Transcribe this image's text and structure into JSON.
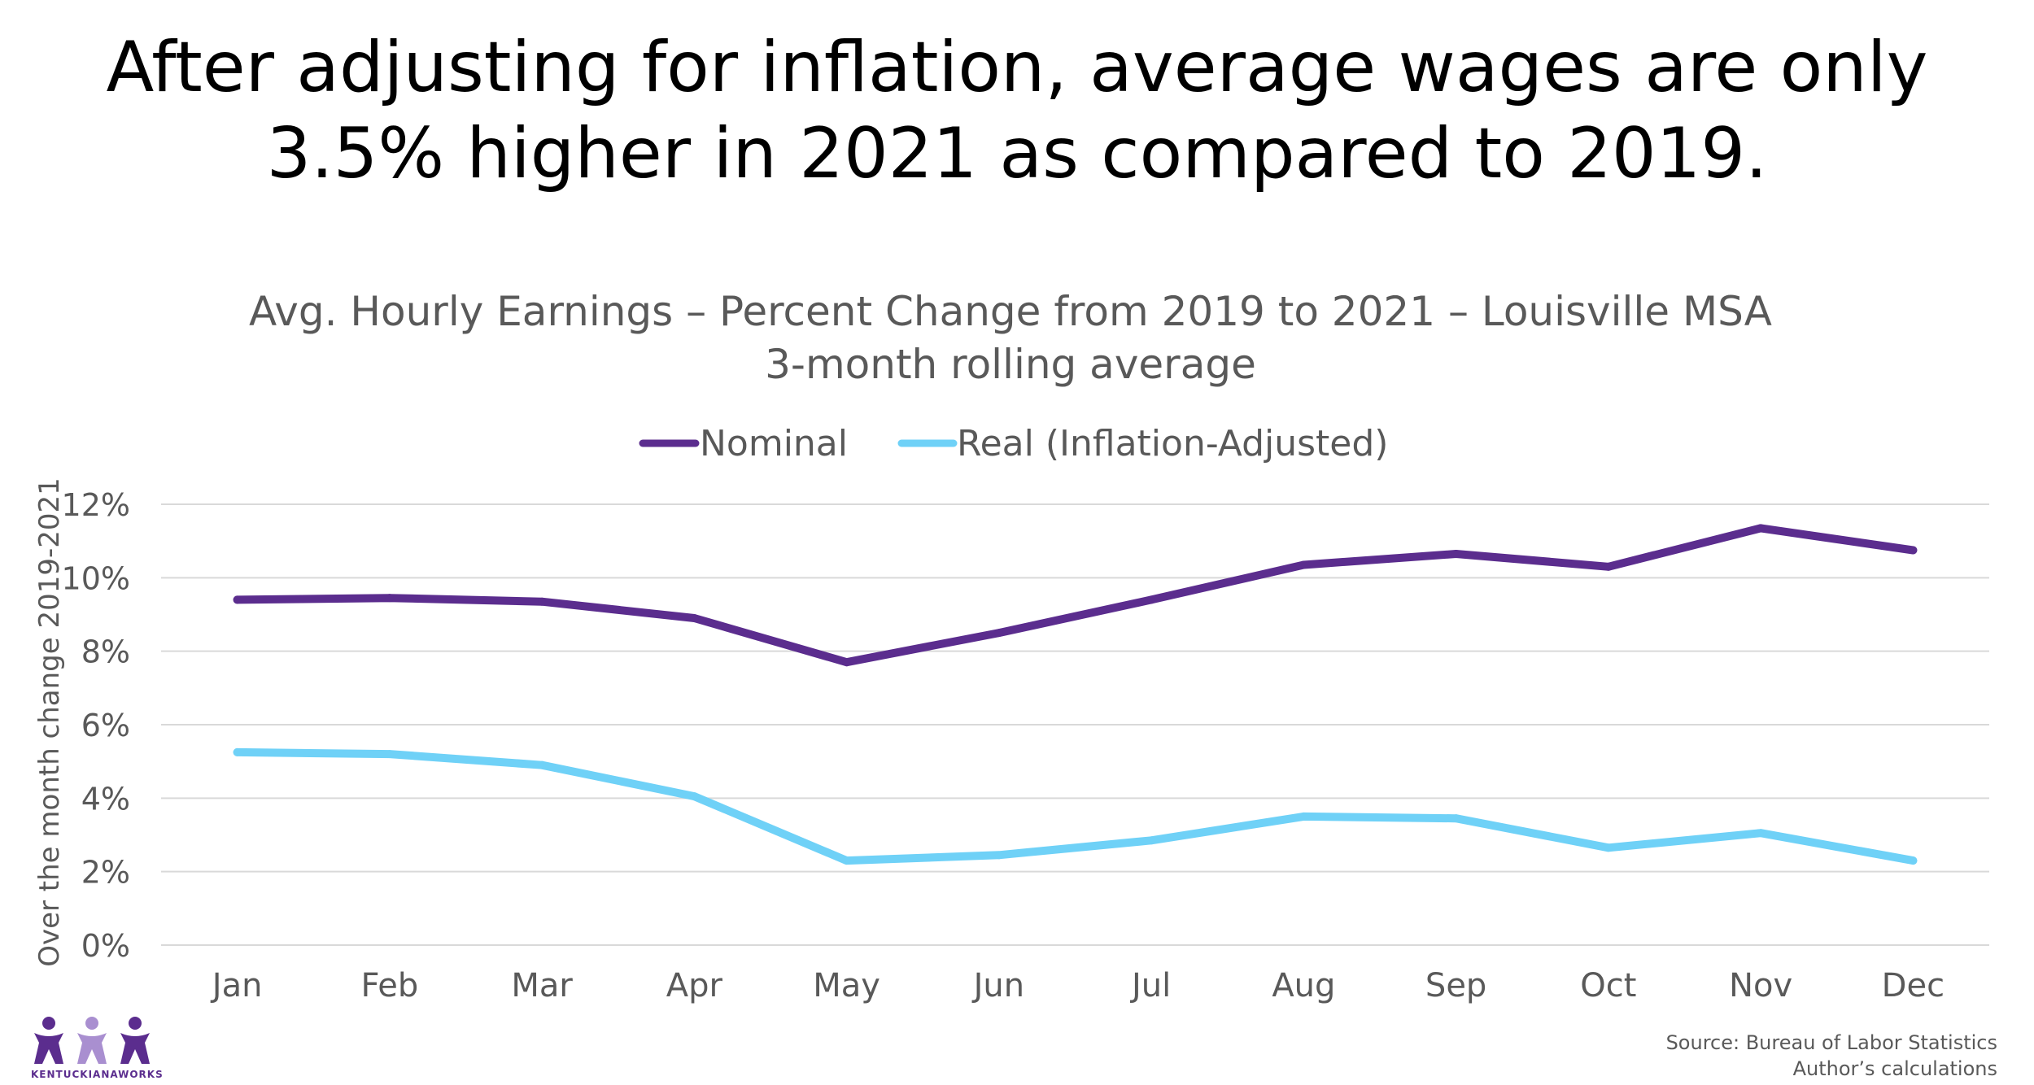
{
  "headline": {
    "line1": "After adjusting for inflation, average wages are only",
    "line2": "3.5% higher in 2021 as compared to 2019."
  },
  "colors": {
    "nominal": "#5b2d8e",
    "real": "#6fd1f7",
    "grid": "#d9d9d9",
    "text": "#595959"
  },
  "logo": {
    "name": "people-logo-icon",
    "text": "KENTUCKIANAWORKS"
  },
  "source": {
    "line1": "Source: Bureau of Labor Statistics",
    "line2": "Author’s calculations"
  },
  "chart_data": {
    "type": "line",
    "title": "Avg. Hourly Earnings – Percent Change from 2019 to 2021 – Louisville MSA",
    "subtitle": "3-month rolling average",
    "xlabel": "",
    "ylabel": "Over the month change 2019-2021",
    "categories": [
      "Jan",
      "Feb",
      "Mar",
      "Apr",
      "May",
      "Jun",
      "Jul",
      "Aug",
      "Sep",
      "Oct",
      "Nov",
      "Dec"
    ],
    "ylim": [
      0,
      12
    ],
    "yticks": [
      0,
      2,
      4,
      6,
      8,
      10,
      12
    ],
    "ytick_labels": [
      "0%",
      "2%",
      "4%",
      "6%",
      "8%",
      "10%",
      "12%"
    ],
    "grid": true,
    "legend_position": "top-center",
    "series": [
      {
        "name": "Nominal",
        "color": "#5b2d8e",
        "values": [
          9.4,
          9.45,
          9.35,
          8.9,
          7.7,
          8.5,
          9.4,
          10.35,
          10.65,
          10.3,
          11.35,
          10.75
        ]
      },
      {
        "name": "Real (Inflation-Adjusted)",
        "color": "#6fd1f7",
        "values": [
          5.25,
          5.2,
          4.9,
          4.05,
          2.3,
          2.45,
          2.85,
          3.5,
          3.45,
          2.65,
          3.05,
          2.3
        ]
      }
    ]
  }
}
